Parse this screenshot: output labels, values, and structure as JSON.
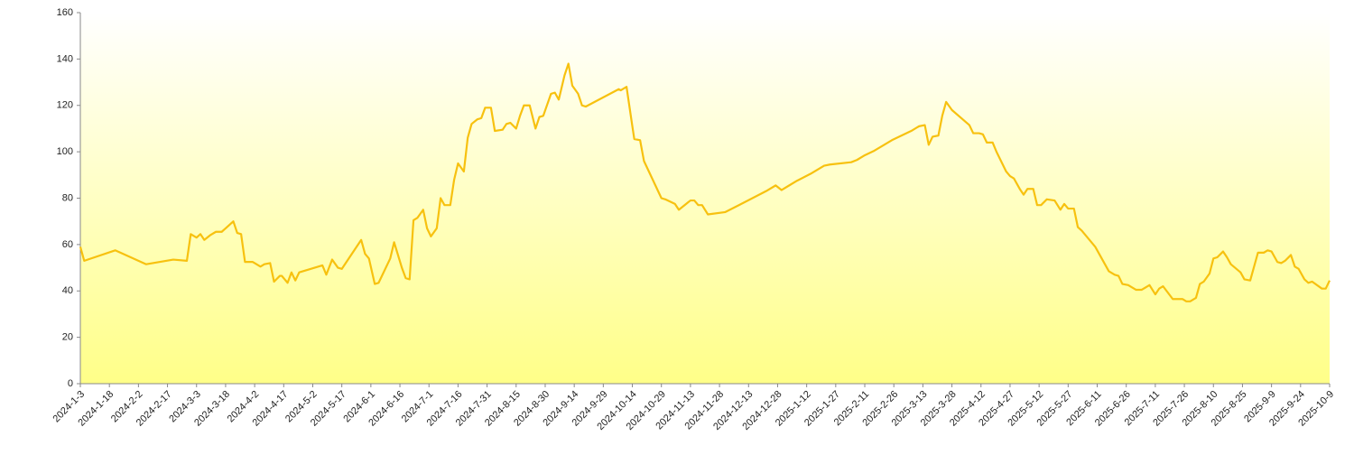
{
  "chart_data": {
    "type": "line",
    "color": "#f7c10f",
    "x": [
      "2024-1-3",
      "2024-1-5",
      "2024-1-21",
      "2024-2-6",
      "2024-2-20",
      "2024-2-27",
      "2024-2-29",
      "2024-3-3",
      "2024-3-5",
      "2024-3-7",
      "2024-3-10",
      "2024-3-13",
      "2024-3-16",
      "2024-3-18",
      "2024-3-22",
      "2024-3-24",
      "2024-3-26",
      "2024-3-28",
      "2024-4-1",
      "2024-4-2",
      "2024-4-5",
      "2024-4-7",
      "2024-4-10",
      "2024-4-12",
      "2024-4-15",
      "2024-4-16",
      "2024-4-19",
      "2024-4-21",
      "2024-4-23",
      "2024-4-25",
      "2024-5-7",
      "2024-5-9",
      "2024-5-12",
      "2024-5-15",
      "2024-5-17",
      "2024-5-27",
      "2024-5-29",
      "2024-5-31",
      "2024-6-3",
      "2024-6-5",
      "2024-6-11",
      "2024-6-13",
      "2024-6-17",
      "2024-6-19",
      "2024-6-21",
      "2024-6-23",
      "2024-6-25",
      "2024-6-28",
      "2024-6-30",
      "2024-7-2",
      "2024-7-5",
      "2024-7-7",
      "2024-7-9",
      "2024-7-12",
      "2024-7-14",
      "2024-7-16",
      "2024-7-19",
      "2024-7-21",
      "2024-7-23",
      "2024-7-26",
      "2024-7-28",
      "2024-7-30",
      "2024-8-2",
      "2024-8-4",
      "2024-8-8",
      "2024-8-10",
      "2024-8-12",
      "2024-8-15",
      "2024-8-17",
      "2024-8-19",
      "2024-8-22",
      "2024-8-25",
      "2024-8-27",
      "2024-8-29",
      "2024-9-2",
      "2024-9-4",
      "2024-9-6",
      "2024-9-9",
      "2024-9-11",
      "2024-9-13",
      "2024-9-16",
      "2024-9-18",
      "2024-9-20",
      "2024-10-7",
      "2024-10-8",
      "2024-10-11",
      "2024-10-14",
      "2024-10-15",
      "2024-10-18",
      "2024-10-20",
      "2024-10-29",
      "2024-10-31",
      "2024-11-5",
      "2024-11-7",
      "2024-11-13",
      "2024-11-15",
      "2024-11-17",
      "2024-11-19",
      "2024-11-22",
      "2024-12-1",
      "2024-12-8",
      "2024-12-15",
      "2024-12-22",
      "2024-12-27",
      "2024-12-30",
      "2025-1-3",
      "2025-1-7",
      "2025-1-14",
      "2025-1-21",
      "2025-1-24",
      "2025-2-4",
      "2025-2-7",
      "2025-2-11",
      "2025-2-16",
      "2025-2-21",
      "2025-2-25",
      "2025-3-2",
      "2025-3-7",
      "2025-3-11",
      "2025-3-14",
      "2025-3-16",
      "2025-3-18",
      "2025-3-21",
      "2025-3-23",
      "2025-3-25",
      "2025-3-28",
      "2025-4-6",
      "2025-4-8",
      "2025-4-11",
      "2025-4-13",
      "2025-4-15",
      "2025-4-18",
      "2025-4-20",
      "2025-4-25",
      "2025-4-27",
      "2025-4-29",
      "2025-5-2",
      "2025-5-4",
      "2025-5-6",
      "2025-5-9",
      "2025-5-11",
      "2025-5-13",
      "2025-5-16",
      "2025-5-20",
      "2025-5-23",
      "2025-5-25",
      "2025-5-27",
      "2025-5-30",
      "2025-6-1",
      "2025-6-3",
      "2025-6-10",
      "2025-6-17",
      "2025-6-20",
      "2025-6-22",
      "2025-6-24",
      "2025-6-27",
      "2025-7-1",
      "2025-7-4",
      "2025-7-8",
      "2025-7-11",
      "2025-7-13",
      "2025-7-15",
      "2025-7-20",
      "2025-7-25",
      "2025-7-27",
      "2025-7-29",
      "2025-8-1",
      "2025-8-3",
      "2025-8-5",
      "2025-8-8",
      "2025-8-10",
      "2025-8-12",
      "2025-8-15",
      "2025-8-17",
      "2025-8-19",
      "2025-8-24",
      "2025-8-26",
      "2025-8-29",
      "2025-9-2",
      "2025-9-5",
      "2025-9-7",
      "2025-9-9",
      "2025-9-12",
      "2025-9-14",
      "2025-9-16",
      "2025-9-19",
      "2025-9-21",
      "2025-9-23",
      "2025-9-26",
      "2025-9-28",
      "2025-9-30",
      "2025-10-5",
      "2025-10-7",
      "2025-10-9"
    ],
    "values": [
      59,
      53,
      57.5,
      51.5,
      53.5,
      53,
      64.5,
      63,
      64.5,
      62,
      64,
      65.5,
      65.5,
      67,
      70,
      65,
      64.5,
      52.5,
      52.5,
      52,
      50.5,
      51.5,
      52,
      44,
      46.5,
      46.5,
      43.5,
      48,
      44.5,
      48,
      51,
      47,
      53.5,
      50,
      49.5,
      62,
      56,
      54,
      43,
      43.5,
      54,
      61,
      50,
      45.5,
      45,
      70.5,
      71.5,
      75,
      67,
      63.5,
      67,
      80,
      77,
      77,
      88,
      95,
      91.5,
      106,
      112,
      114,
      114.5,
      119,
      119,
      109,
      109.5,
      112,
      112.5,
      110,
      115.5,
      120,
      120,
      110,
      115,
      115.5,
      125,
      125.5,
      122.5,
      133,
      138,
      128.5,
      125,
      120,
      119.5,
      127,
      126.5,
      128,
      111,
      105.5,
      105,
      96,
      80,
      79.5,
      77.5,
      75,
      79,
      79,
      77,
      77,
      73,
      74,
      77,
      80,
      83,
      85.5,
      83.5,
      85.5,
      87.5,
      90.5,
      94,
      94.5,
      95.5,
      96.5,
      98.5,
      100.5,
      103,
      105,
      107,
      109,
      111,
      111.5,
      103,
      106.5,
      107,
      115.5,
      121.5,
      118,
      111.5,
      108,
      108,
      107.5,
      104,
      104,
      100,
      91.5,
      89.5,
      88.5,
      84,
      81.5,
      84,
      84,
      77,
      77,
      79.5,
      79,
      75,
      77.5,
      75.5,
      75.5,
      67.5,
      66,
      59,
      48.5,
      47,
      46.5,
      43,
      42.5,
      40.5,
      40.5,
      42.5,
      38.5,
      41,
      42,
      36.5,
      36.5,
      35.5,
      35.5,
      37,
      43,
      44,
      47.5,
      54,
      54.5,
      57,
      54.5,
      51.5,
      48,
      45,
      44.5,
      56.5,
      56.5,
      57.5,
      57,
      52.5,
      52,
      53,
      55.5,
      50.5,
      49.5,
      45,
      43.5,
      44,
      41,
      41,
      44.5
    ],
    "xlim": [
      "2024-1-3",
      "2025-10-9"
    ],
    "xticks": [
      "2024-1-3",
      "2024-1-18",
      "2024-2-2",
      "2024-2-17",
      "2024-3-3",
      "2024-3-18",
      "2024-4-2",
      "2024-4-17",
      "2024-5-2",
      "2024-5-17",
      "2024-6-1",
      "2024-6-16",
      "2024-7-1",
      "2024-7-16",
      "2024-7-31",
      "2024-8-15",
      "2024-8-30",
      "2024-9-14",
      "2024-9-29",
      "2024-10-14",
      "2024-10-29",
      "2024-11-13",
      "2024-11-28",
      "2024-12-13",
      "2024-12-28",
      "2025-1-12",
      "2025-1-27",
      "2025-2-11",
      "2025-2-26",
      "2025-3-13",
      "2025-3-28",
      "2025-4-12",
      "2025-4-27",
      "2025-5-12",
      "2025-5-27",
      "2025-6-11",
      "2025-6-26",
      "2025-7-11",
      "2025-7-26",
      "2025-8-10",
      "2025-8-25",
      "2025-9-9",
      "2025-9-24",
      "2025-10-9"
    ],
    "ylim": [
      0,
      160
    ],
    "yticks": [
      0,
      20,
      40,
      60,
      80,
      100,
      120,
      140,
      160
    ],
    "grid": false
  }
}
